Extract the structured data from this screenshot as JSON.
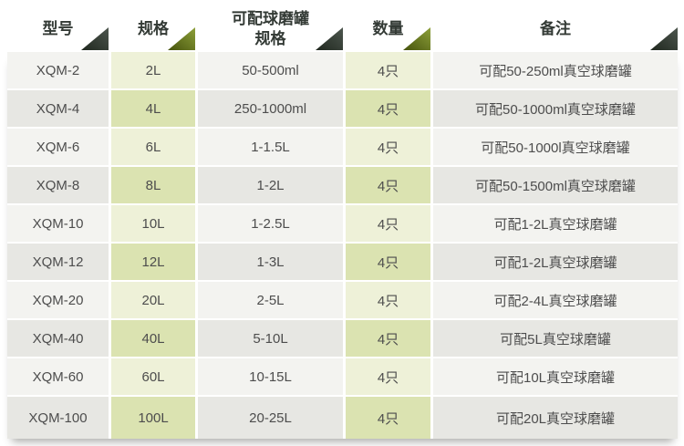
{
  "table": {
    "headers": [
      {
        "label": "型号",
        "triangle": "dark"
      },
      {
        "label": "规格",
        "triangle": "olive"
      },
      {
        "label": "可配球磨罐\n规格",
        "triangle": "dark"
      },
      {
        "label": "数量",
        "triangle": "olive"
      },
      {
        "label": "备注",
        "triangle": "dark"
      }
    ],
    "rows": [
      {
        "model": "XQM-2",
        "spec": "2L",
        "jar_spec": "50-500ml",
        "qty": "4只",
        "note": "可配50-250ml真空球磨罐"
      },
      {
        "model": "XQM-4",
        "spec": "4L",
        "jar_spec": "250-1000ml",
        "qty": "4只",
        "note": "可配50-1000ml真空球磨罐"
      },
      {
        "model": "XQM-6",
        "spec": "6L",
        "jar_spec": "1-1.5L",
        "qty": "4只",
        "note": "可配50-1000l真空球磨罐"
      },
      {
        "model": "XQM-8",
        "spec": "8L",
        "jar_spec": "1-2L",
        "qty": "4只",
        "note": "可配50-1500ml真空球磨罐"
      },
      {
        "model": "XQM-10",
        "spec": "10L",
        "jar_spec": "1-2.5L",
        "qty": "4只",
        "note": "可配1-2L真空球磨罐"
      },
      {
        "model": "XQM-12",
        "spec": "12L",
        "jar_spec": "1-3L",
        "qty": "4只",
        "note": "可配1-2L真空球磨罐"
      },
      {
        "model": "XQM-20",
        "spec": "20L",
        "jar_spec": "2-5L",
        "qty": "4只",
        "note": "可配2-4L真空球磨罐"
      },
      {
        "model": "XQM-40",
        "spec": "40L",
        "jar_spec": "5-10L",
        "qty": "4只",
        "note": "可配5L真空球磨罐"
      },
      {
        "model": "XQM-60",
        "spec": "60L",
        "jar_spec": "10-15L",
        "qty": "4只",
        "note": "可配10L真空球磨罐"
      },
      {
        "model": "XQM-100",
        "spec": "100L",
        "jar_spec": "20-25L",
        "qty": "4只",
        "note": "可配20L真空球磨罐"
      }
    ],
    "colors": {
      "header_text": "#333a35",
      "cell_text": "#4d4d4d",
      "triangle_dark": "#2d362e",
      "triangle_olive": "#5c6a14",
      "row_gray_light": "#f3f3f0",
      "row_gray_dark": "#e7e7e3",
      "row_green_light": "#eef1d8",
      "row_green_dark": "#dbe3b1",
      "background": "#ffffff"
    }
  }
}
